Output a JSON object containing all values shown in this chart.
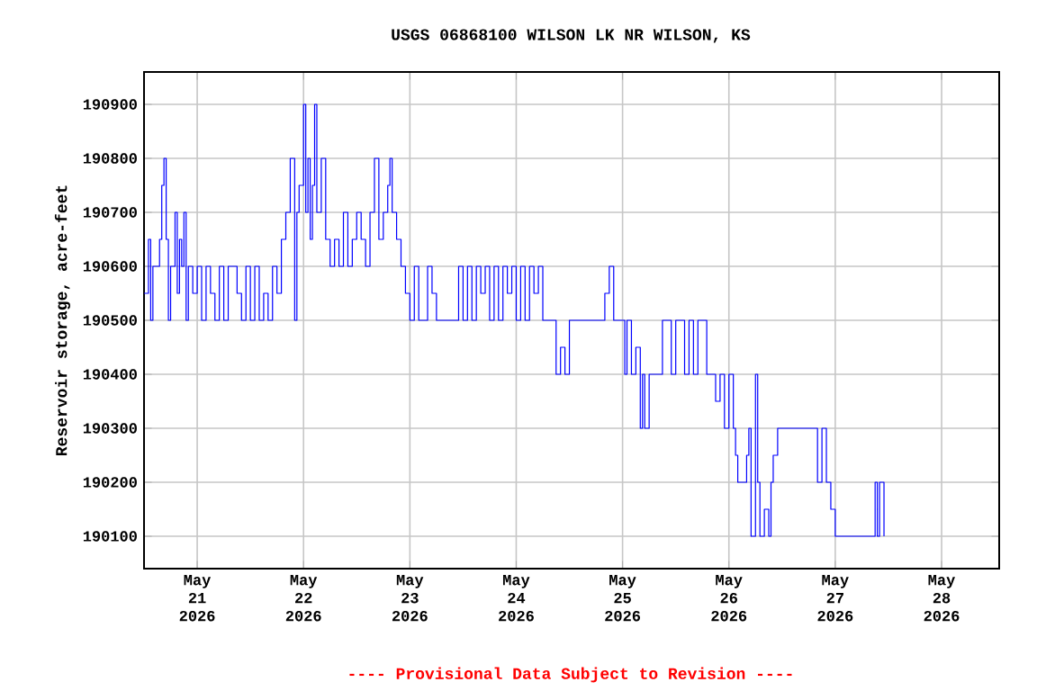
{
  "chart_data": {
    "type": "step",
    "title": "USGS 06868100 WILSON LK NR WILSON, KS",
    "ylabel": "Reservoir storage, acre-feet",
    "annotations": [
      "---- Provisional Data Subject to Revision ----"
    ],
    "grid": true,
    "xlim": [
      "2026-05-20T12:00",
      "2026-05-28T13:00"
    ],
    "ylim": [
      190040,
      190960
    ],
    "xticks": [
      {
        "value": "2026-05-21",
        "label": "May 21 2026"
      },
      {
        "value": "2026-05-22",
        "label": "May 22 2026"
      },
      {
        "value": "2026-05-23",
        "label": "May 23 2026"
      },
      {
        "value": "2026-05-24",
        "label": "May 24 2026"
      },
      {
        "value": "2026-05-25",
        "label": "May 25 2026"
      },
      {
        "value": "2026-05-26",
        "label": "May 26 2026"
      },
      {
        "value": "2026-05-27",
        "label": "May 27 2026"
      },
      {
        "value": "2026-05-28",
        "label": "May 28 2026"
      }
    ],
    "yticks": [
      190100,
      190200,
      190300,
      190400,
      190500,
      190600,
      190700,
      190800,
      190900
    ],
    "series": [
      {
        "color": "#0000ff",
        "x": [
          "2026-05-20T12:00",
          "2026-05-20T13:00",
          "2026-05-20T13:30",
          "2026-05-20T14:00",
          "2026-05-20T15:00",
          "2026-05-20T15:30",
          "2026-05-20T16:00",
          "2026-05-20T16:30",
          "2026-05-20T17:00",
          "2026-05-20T17:30",
          "2026-05-20T18:00",
          "2026-05-20T19:00",
          "2026-05-20T19:30",
          "2026-05-20T20:00",
          "2026-05-20T20:30",
          "2026-05-20T21:00",
          "2026-05-20T21:30",
          "2026-05-20T22:00",
          "2026-05-20T23:00",
          "2026-05-21T00:00",
          "2026-05-21T01:00",
          "2026-05-21T02:00",
          "2026-05-21T03:00",
          "2026-05-21T04:00",
          "2026-05-21T05:00",
          "2026-05-21T06:00",
          "2026-05-21T07:00",
          "2026-05-21T08:00",
          "2026-05-21T09:00",
          "2026-05-21T10:00",
          "2026-05-21T11:00",
          "2026-05-21T12:00",
          "2026-05-21T13:00",
          "2026-05-21T14:00",
          "2026-05-21T15:00",
          "2026-05-21T16:00",
          "2026-05-21T17:00",
          "2026-05-21T18:00",
          "2026-05-21T19:00",
          "2026-05-21T20:00",
          "2026-05-21T21:00",
          "2026-05-21T22:00",
          "2026-05-21T22:30",
          "2026-05-21T23:00",
          "2026-05-22T00:00",
          "2026-05-22T00:30",
          "2026-05-22T01:00",
          "2026-05-22T01:30",
          "2026-05-22T02:00",
          "2026-05-22T02:30",
          "2026-05-22T03:00",
          "2026-05-22T04:00",
          "2026-05-22T05:00",
          "2026-05-22T06:00",
          "2026-05-22T07:00",
          "2026-05-22T08:00",
          "2026-05-22T09:00",
          "2026-05-22T10:00",
          "2026-05-22T11:00",
          "2026-05-22T12:00",
          "2026-05-22T13:00",
          "2026-05-22T14:00",
          "2026-05-22T15:00",
          "2026-05-22T15:00",
          "2026-05-22T16:00",
          "2026-05-22T17:00",
          "2026-05-22T18:00",
          "2026-05-22T19:00",
          "2026-05-22T19:30",
          "2026-05-22T20:00",
          "2026-05-22T21:00",
          "2026-05-22T22:00",
          "2026-05-22T23:00",
          "2026-05-23T00:00",
          "2026-05-23T01:00",
          "2026-05-23T02:00",
          "2026-05-23T03:00",
          "2026-05-23T04:00",
          "2026-05-23T05:00",
          "2026-05-23T06:00",
          "2026-05-23T08:00",
          "2026-05-23T10:00",
          "2026-05-23T11:00",
          "2026-05-23T12:00",
          "2026-05-23T13:00",
          "2026-05-23T14:00",
          "2026-05-23T15:00",
          "2026-05-23T16:00",
          "2026-05-23T17:00",
          "2026-05-23T18:00",
          "2026-05-23T19:00",
          "2026-05-23T20:00",
          "2026-05-23T21:00",
          "2026-05-23T22:00",
          "2026-05-23T23:00",
          "2026-05-24T00:00",
          "2026-05-24T01:00",
          "2026-05-24T02:00",
          "2026-05-24T03:00",
          "2026-05-24T04:00",
          "2026-05-24T05:00",
          "2026-05-24T06:00",
          "2026-05-24T08:00",
          "2026-05-24T09:00",
          "2026-05-24T10:00",
          "2026-05-24T11:00",
          "2026-05-24T12:00",
          "2026-05-24T14:00",
          "2026-05-24T16:00",
          "2026-05-24T18:00",
          "2026-05-24T20:00",
          "2026-05-24T21:00",
          "2026-05-24T22:00",
          "2026-05-25T00:00",
          "2026-05-25T00:30",
          "2026-05-25T01:00",
          "2026-05-25T02:00",
          "2026-05-25T03:00",
          "2026-05-25T04:00",
          "2026-05-25T04:30",
          "2026-05-25T05:00",
          "2026-05-25T06:00",
          "2026-05-25T07:00",
          "2026-05-25T08:00",
          "2026-05-25T09:00",
          "2026-05-25T10:00",
          "2026-05-25T11:00",
          "2026-05-25T12:00",
          "2026-05-25T13:00",
          "2026-05-25T14:00",
          "2026-05-25T15:00",
          "2026-05-25T16:00",
          "2026-05-25T17:00",
          "2026-05-25T18:00",
          "2026-05-25T19:00",
          "2026-05-25T20:00",
          "2026-05-25T21:00",
          "2026-05-25T22:00",
          "2026-05-25T23:00",
          "2026-05-26T00:00",
          "2026-05-26T01:00",
          "2026-05-26T01:30",
          "2026-05-26T02:00",
          "2026-05-26T03:00",
          "2026-05-26T04:00",
          "2026-05-26T04:30",
          "2026-05-26T05:00",
          "2026-05-26T06:00",
          "2026-05-26T06:30",
          "2026-05-26T07:00",
          "2026-05-26T08:00",
          "2026-05-26T09:00",
          "2026-05-26T09:30",
          "2026-05-26T10:00",
          "2026-05-26T11:00",
          "2026-05-26T12:00",
          "2026-05-26T14:00",
          "2026-05-26T16:00",
          "2026-05-26T18:00",
          "2026-05-26T20:00",
          "2026-05-26T21:00",
          "2026-05-26T22:00",
          "2026-05-26T23:00",
          "2026-05-27T00:00",
          "2026-05-27T02:00",
          "2026-05-27T04:00",
          "2026-05-27T06:00",
          "2026-05-27T08:00",
          "2026-05-27T09:00",
          "2026-05-27T09:30",
          "2026-05-27T10:00",
          "2026-05-27T11:00"
        ],
        "values": [
          190550,
          190650,
          190500,
          190600,
          190600,
          190650,
          190750,
          190800,
          190650,
          190500,
          190600,
          190700,
          190550,
          190650,
          190600,
          190700,
          190500,
          190600,
          190550,
          190600,
          190500,
          190600,
          190550,
          190500,
          190600,
          190500,
          190600,
          190600,
          190550,
          190500,
          190600,
          190500,
          190600,
          190500,
          190550,
          190500,
          190600,
          190550,
          190650,
          190700,
          190800,
          190500,
          190700,
          190750,
          190900,
          190700,
          190800,
          190650,
          190750,
          190900,
          190700,
          190800,
          190650,
          190600,
          190650,
          190600,
          190700,
          190600,
          190650,
          190700,
          190650,
          190600,
          190700,
          190700,
          190800,
          190650,
          190700,
          190750,
          190800,
          190700,
          190650,
          190600,
          190550,
          190500,
          190600,
          190500,
          190500,
          190600,
          190550,
          190500,
          190500,
          190500,
          190600,
          190500,
          190600,
          190500,
          190600,
          190550,
          190600,
          190500,
          190600,
          190500,
          190600,
          190550,
          190600,
          190500,
          190600,
          190500,
          190600,
          190550,
          190600,
          190500,
          190500,
          190400,
          190450,
          190400,
          190500,
          190500,
          190500,
          190500,
          190550,
          190600,
          190500,
          190500,
          190400,
          190500,
          190400,
          190450,
          190300,
          190400,
          190300,
          190400,
          190400,
          190400,
          190500,
          190500,
          190400,
          190500,
          190500,
          190400,
          190500,
          190400,
          190500,
          190500,
          190400,
          190400,
          190350,
          190400,
          190300,
          190400,
          190300,
          190250,
          190200,
          190200,
          190250,
          190300,
          190100,
          190400,
          190200,
          190100,
          190150,
          190100,
          190200,
          190250,
          190300,
          190300,
          190300,
          190300,
          190300,
          190200,
          190300,
          190200,
          190150,
          190100,
          190100,
          190100,
          190100,
          190100,
          190200,
          190100,
          190200,
          190100
        ]
      }
    ]
  }
}
